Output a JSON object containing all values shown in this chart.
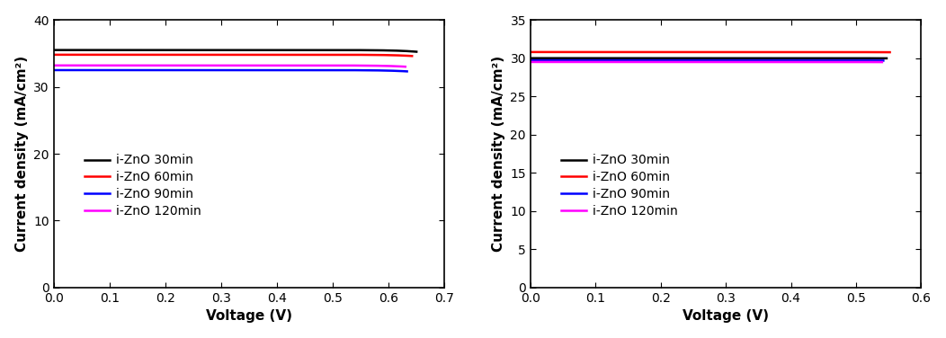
{
  "left": {
    "ylabel": "Current density (mA/cm²)",
    "xlabel": "Voltage (V)",
    "xlim": [
      0,
      0.7
    ],
    "ylim": [
      0,
      40
    ],
    "xticks": [
      0.0,
      0.1,
      0.2,
      0.3,
      0.4,
      0.5,
      0.6,
      0.7
    ],
    "yticks": [
      0,
      10,
      20,
      30,
      40
    ],
    "series": [
      {
        "label": "i-ZnO 30min",
        "color": "#000000",
        "jsc": 35.5,
        "voc": 0.63,
        "j0": 1e-10,
        "ideality": 1.35,
        "rs": 0.003
      },
      {
        "label": "i-ZnO 60min",
        "color": "#ff0000",
        "jsc": 34.8,
        "voc": 0.622,
        "j0": 1e-10,
        "ideality": 1.35,
        "rs": 0.003
      },
      {
        "label": "i-ZnO 90min",
        "color": "#0000ff",
        "jsc": 32.5,
        "voc": 0.613,
        "j0": 1e-10,
        "ideality": 1.38,
        "rs": 0.004
      },
      {
        "label": "i-ZnO 120min",
        "color": "#ff00ff",
        "jsc": 33.2,
        "voc": 0.61,
        "j0": 1e-10,
        "ideality": 1.38,
        "rs": 0.004
      }
    ]
  },
  "right": {
    "ylabel": "Current density (mA/cm²)",
    "xlabel": "Voltage (V)",
    "xlim": [
      0,
      0.6
    ],
    "ylim": [
      0,
      35
    ],
    "xticks": [
      0.0,
      0.1,
      0.2,
      0.3,
      0.4,
      0.5,
      0.6
    ],
    "yticks": [
      0,
      5,
      10,
      15,
      20,
      25,
      30,
      35
    ],
    "series": [
      {
        "label": "i-ZnO 30min",
        "color": "#000000",
        "jsc": 30.0,
        "voc": 0.527,
        "j0": 1e-07,
        "ideality": 2.2,
        "rs": 0.005
      },
      {
        "label": "i-ZnO 60min",
        "color": "#ff0000",
        "jsc": 30.8,
        "voc": 0.532,
        "j0": 1e-07,
        "ideality": 2.2,
        "rs": 0.005
      },
      {
        "label": "i-ZnO 90min",
        "color": "#0000ff",
        "jsc": 29.7,
        "voc": 0.522,
        "j0": 1e-07,
        "ideality": 2.2,
        "rs": 0.005
      },
      {
        "label": "i-ZnO 120min",
        "color": "#ff00ff",
        "jsc": 29.5,
        "voc": 0.52,
        "j0": 1e-07,
        "ideality": 2.2,
        "rs": 0.005
      }
    ]
  },
  "linewidth": 1.8,
  "font_size": 10,
  "label_font_size": 11,
  "tick_font_size": 10
}
